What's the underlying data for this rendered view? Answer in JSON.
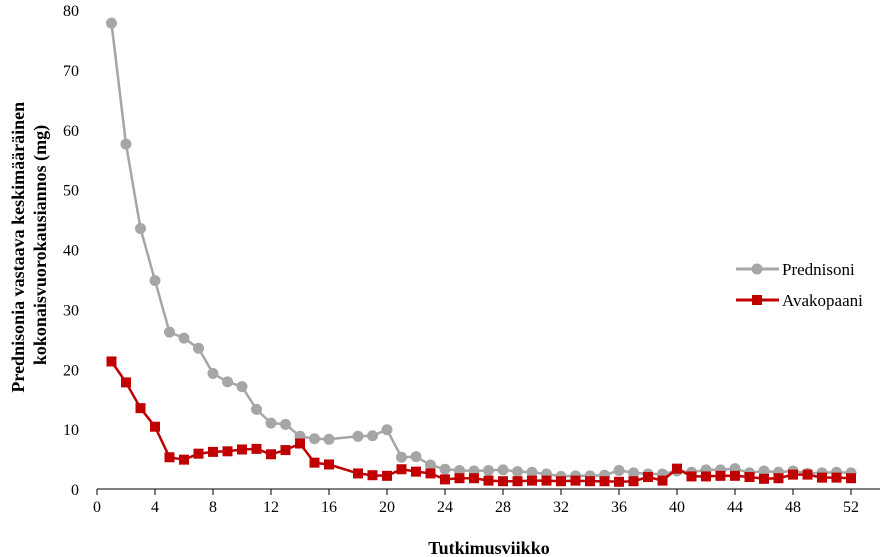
{
  "chart_data": {
    "type": "line",
    "xlabel": "Tutkimusviikko",
    "ylabel": "Prednisonia vastaava keskimääräinen kokonaisvuorokausiannos (mg)",
    "ylabel_lines": [
      "Prednisonia vastaava keskimääräinen",
      "kokonaisvuorokausiannos (mg)"
    ],
    "xlim": [
      0,
      54
    ],
    "ylim": [
      0,
      80
    ],
    "xticks": [
      "0",
      "4",
      "8",
      "12",
      "16",
      "20",
      "24",
      "28",
      "32",
      "36",
      "40",
      "44",
      "48",
      "52"
    ],
    "yticks": [
      "0",
      "10",
      "20",
      "30",
      "40",
      "50",
      "60",
      "70",
      "80"
    ],
    "grid": false,
    "legend_position": "right",
    "series": [
      {
        "name": "Prednisoni",
        "color": "#a6a6a6",
        "marker": "circle",
        "x": [
          1,
          2,
          3,
          4,
          5,
          6,
          7,
          8,
          9,
          10,
          11,
          12,
          13,
          14,
          15,
          16,
          18,
          19,
          20,
          21,
          22,
          23,
          24,
          25,
          26,
          27,
          28,
          29,
          30,
          31,
          32,
          33,
          34,
          35,
          36,
          37,
          38,
          39,
          40,
          41,
          42,
          43,
          44,
          45,
          46,
          47,
          48,
          49,
          50,
          51,
          52
        ],
        "y": [
          77.8,
          57.6,
          43.5,
          34.8,
          26.2,
          25.2,
          23.5,
          19.3,
          17.9,
          17.1,
          13.3,
          11.0,
          10.8,
          8.8,
          8.4,
          8.3,
          8.8,
          8.9,
          9.9,
          5.3,
          5.4,
          4.0,
          3.3,
          3.1,
          3.0,
          3.1,
          3.2,
          2.9,
          2.8,
          2.5,
          2.1,
          2.2,
          2.2,
          2.3,
          3.1,
          2.7,
          2.5,
          2.5,
          3.0,
          2.8,
          3.2,
          3.2,
          3.4,
          2.7,
          3.0,
          2.8,
          3.0,
          2.6,
          2.7,
          2.8,
          2.7
        ]
      },
      {
        "name": "Avakopaani",
        "color": "#c00000",
        "marker": "square",
        "x": [
          1,
          2,
          3,
          4,
          5,
          6,
          7,
          8,
          9,
          10,
          11,
          12,
          13,
          14,
          15,
          16,
          18,
          19,
          20,
          21,
          22,
          23,
          24,
          25,
          26,
          27,
          28,
          29,
          30,
          31,
          32,
          33,
          34,
          35,
          36,
          37,
          38,
          39,
          40,
          41,
          42,
          43,
          44,
          45,
          46,
          47,
          48,
          49,
          50,
          51,
          52
        ],
        "y": [
          21.3,
          17.8,
          13.5,
          10.4,
          5.3,
          4.9,
          5.9,
          6.2,
          6.3,
          6.6,
          6.7,
          5.8,
          6.5,
          7.6,
          4.4,
          4.1,
          2.6,
          2.3,
          2.2,
          3.3,
          2.9,
          2.6,
          1.6,
          1.8,
          1.8,
          1.4,
          1.3,
          1.3,
          1.4,
          1.4,
          1.3,
          1.4,
          1.3,
          1.3,
          1.2,
          1.3,
          2.0,
          1.4,
          3.4,
          2.1,
          2.1,
          2.2,
          2.2,
          2.0,
          1.7,
          1.8,
          2.4,
          2.4,
          1.9,
          1.9,
          1.8
        ]
      }
    ]
  }
}
